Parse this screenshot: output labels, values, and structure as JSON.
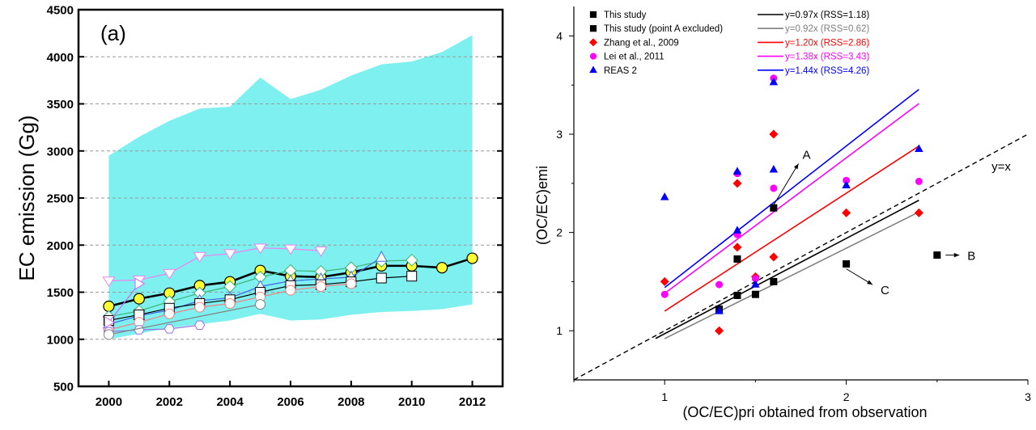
{
  "chart_data": [
    {
      "type": "line",
      "panel_label": "(a)",
      "ylabel": "EC emission (Gg)",
      "xlabel": "",
      "xlim": [
        1999,
        2013
      ],
      "ylim": [
        500,
        4500
      ],
      "xticks": [
        "2000",
        "2002",
        "2004",
        "2006",
        "2008",
        "2010",
        "2012"
      ],
      "yticks": [
        "500",
        "1000",
        "1500",
        "2000",
        "2500",
        "3000",
        "3500",
        "4000",
        "4500"
      ],
      "grid": "horizontal dashed",
      "uncertainty_band": {
        "color": "#7FF0F0",
        "x": [
          2000,
          2001,
          2002,
          2003,
          2004,
          2005,
          2006,
          2007,
          2008,
          2009,
          2010,
          2011,
          2012
        ],
        "upper": [
          2950,
          3150,
          3320,
          3450,
          3470,
          3780,
          3550,
          3650,
          3800,
          3920,
          3950,
          4050,
          4230
        ],
        "lower": [
          1000,
          1060,
          1120,
          1160,
          1200,
          1270,
          1200,
          1210,
          1260,
          1290,
          1300,
          1320,
          1370
        ]
      },
      "series": [
        {
          "color": "#000000",
          "marker": "circle-yellow",
          "x": [
            2000,
            2001,
            2002,
            2003,
            2004,
            2005,
            2006,
            2007,
            2008,
            2009,
            2010,
            2011,
            2012
          ],
          "values": [
            1350,
            1430,
            1490,
            1570,
            1610,
            1730,
            1670,
            1660,
            1710,
            1780,
            1780,
            1760,
            1860
          ]
        },
        {
          "color": "#EE82EE",
          "marker": "triangle-down",
          "x": [
            2000,
            2001,
            2002,
            2003,
            2004,
            2005,
            2006,
            2007
          ],
          "values": [
            1620,
            1630,
            1700,
            1880,
            1910,
            1970,
            1960,
            1940
          ]
        },
        {
          "color": "#3CB371",
          "marker": "diamond",
          "x": [
            2000,
            2001,
            2002,
            2003,
            2004,
            2005,
            2006,
            2007,
            2008,
            2009,
            2010
          ],
          "values": [
            1240,
            1300,
            1400,
            1490,
            1560,
            1660,
            1730,
            1720,
            1760,
            1830,
            1840
          ]
        },
        {
          "color": "#4169E1",
          "marker": "triangle-up",
          "x": [
            2000,
            2001,
            2002,
            2003,
            2004,
            2005,
            2006,
            2007,
            2008,
            2009
          ],
          "values": [
            1160,
            1250,
            1310,
            1410,
            1440,
            1560,
            1620,
            1640,
            1660,
            1870
          ]
        },
        {
          "color": "#000000",
          "marker": "square",
          "x": [
            2000,
            2001,
            2002,
            2003,
            2004,
            2005,
            2006,
            2007,
            2008,
            2009,
            2010
          ],
          "values": [
            1200,
            1260,
            1330,
            1380,
            1420,
            1500,
            1570,
            1580,
            1610,
            1650,
            1670
          ]
        },
        {
          "color": "#F08080",
          "marker": "circle",
          "x": [
            2000,
            2001,
            2002,
            2003,
            2004,
            2005,
            2006,
            2007,
            2008
          ],
          "values": [
            1100,
            1180,
            1270,
            1340,
            1380,
            1450,
            1520,
            1560,
            1590
          ]
        },
        {
          "color": "#9370DB",
          "marker": "hexagon",
          "x": [
            2000,
            2001,
            2002,
            2003
          ],
          "values": [
            1080,
            1100,
            1110,
            1150
          ]
        },
        {
          "color": "#CC66FF",
          "marker": "triangle-right",
          "x": [
            2000,
            2001
          ],
          "values": [
            1180,
            1590
          ]
        },
        {
          "color": "#808080",
          "marker": "circle",
          "x": [
            2000,
            2005
          ],
          "values": [
            1050,
            1370
          ]
        }
      ]
    },
    {
      "type": "scatter",
      "xlabel": "(OC/EC)pri obtained from observation",
      "ylabel": "(OC/EC)emi",
      "xlim": [
        0.5,
        3
      ],
      "ylim": [
        0.5,
        4.3
      ],
      "xticks": [
        "1",
        "2",
        "3"
      ],
      "yticks": [
        "1",
        "2",
        "3",
        "4"
      ],
      "legend_position": "top",
      "reference_line": {
        "label": "y=x",
        "slope": 1
      },
      "fit_lines": [
        {
          "label": "y=0.97x (RSS=1.18)",
          "color": "#000000",
          "slope": 0.97,
          "x": [
            0.95,
            2.4
          ]
        },
        {
          "label": "y=0.92x (RSS=0.62)",
          "color": "#808080",
          "slope": 0.92,
          "x": [
            1.0,
            2.4
          ]
        },
        {
          "label": "y=1.20x (RSS=2.86)",
          "color": "#FF0000",
          "slope": 1.2,
          "x": [
            1.0,
            2.4
          ]
        },
        {
          "label": "y=1.38x (RSS=3.43)",
          "color": "#FF00FF",
          "slope": 1.38,
          "x": [
            1.0,
            2.4
          ]
        },
        {
          "label": "y=1.44x (RSS=4.26)",
          "color": "#0000FF",
          "slope": 1.44,
          "x": [
            1.0,
            2.4
          ]
        }
      ],
      "series": [
        {
          "name": "This study",
          "marker": "square",
          "color": "#000000",
          "x": [
            1.3,
            1.4,
            1.4,
            1.5,
            1.6,
            1.6,
            2.0,
            2.5
          ],
          "y": [
            1.22,
            1.36,
            1.73,
            1.37,
            1.5,
            2.25,
            1.68,
            1.77
          ]
        },
        {
          "name": "This study (point A excluded)",
          "marker": "square",
          "color": "#000000",
          "x": [],
          "y": []
        },
        {
          "name": "Zhang et al., 2009",
          "marker": "diamond",
          "color": "#FF0000",
          "x": [
            1.0,
            1.3,
            1.4,
            1.4,
            1.5,
            1.6,
            1.6,
            2.0,
            2.4
          ],
          "y": [
            1.5,
            1.0,
            1.85,
            2.5,
            1.55,
            1.75,
            3.0,
            2.2,
            2.2
          ]
        },
        {
          "name": "Lei et al., 2011",
          "marker": "circle",
          "color": "#FF00FF",
          "x": [
            1.0,
            1.3,
            1.4,
            1.4,
            1.5,
            1.6,
            1.6,
            2.0,
            2.4
          ],
          "y": [
            1.37,
            1.47,
            1.98,
            2.6,
            1.53,
            2.45,
            3.57,
            2.53,
            2.52
          ]
        },
        {
          "name": "REAS 2",
          "marker": "triangle",
          "color": "#0000FF",
          "x": [
            1.0,
            1.3,
            1.4,
            1.4,
            1.5,
            1.6,
            1.6,
            2.0,
            2.4
          ],
          "y": [
            2.36,
            1.2,
            2.02,
            2.62,
            1.47,
            2.64,
            3.53,
            2.48,
            2.85
          ]
        }
      ],
      "annotations": [
        {
          "text": "A",
          "x": 1.75,
          "y": 2.75,
          "points_to": [
            1.6,
            2.28
          ]
        },
        {
          "text": "B",
          "x": 2.64,
          "y": 1.77,
          "points_to": [
            2.52,
            1.77
          ]
        },
        {
          "text": "C",
          "x": 2.18,
          "y": 1.42,
          "points_to": [
            2.0,
            1.63
          ]
        }
      ]
    }
  ]
}
